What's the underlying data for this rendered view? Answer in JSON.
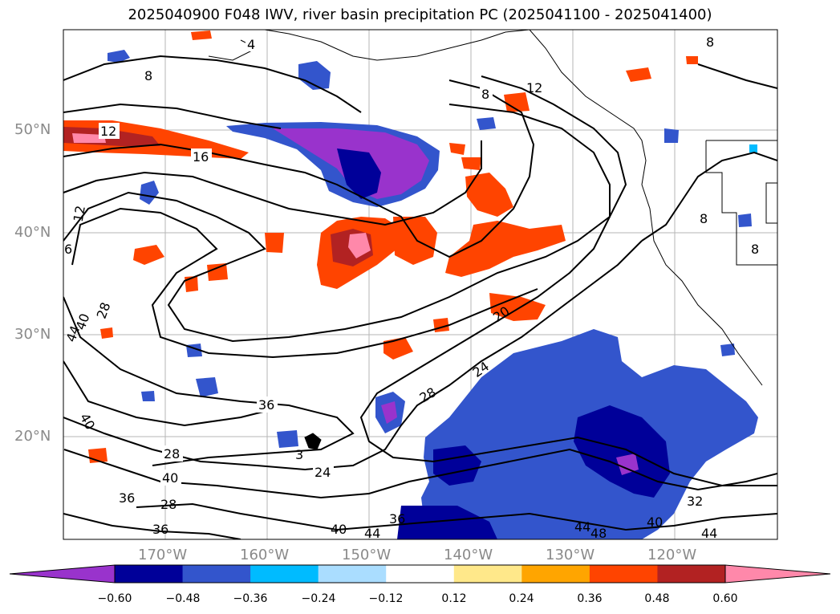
{
  "title": "2025040900 F048 IWV, river basin precipitation PC (2025041100 - 2025041400)",
  "axes": {
    "lat_labels": [
      "50°N",
      "40°N",
      "30°N",
      "20°N"
    ],
    "lon_labels": [
      "170°W",
      "160°W",
      "150°W",
      "140°W",
      "130°W",
      "120°W"
    ]
  },
  "colorbar": {
    "colors": [
      "#9933cc",
      "#000099",
      "#3355cc",
      "#00bbff",
      "#aaddff",
      "#ffffff",
      "#ffe88a",
      "#ffa500",
      "#ff4400",
      "#b22222",
      "#ff88aa"
    ],
    "under_color": "#9933cc",
    "over_color": "#ff88aa",
    "ticks": [
      "−0.60",
      "−0.48",
      "−0.36",
      "−0.24",
      "−0.12",
      "0.12",
      "0.24",
      "0.36",
      "0.48",
      "0.60"
    ]
  },
  "contour_labels": [
    "4",
    "8",
    "8",
    "12",
    "12",
    "16",
    "12",
    "6",
    "8",
    "8",
    "8",
    "28",
    "40",
    "44",
    "20",
    "24",
    "28",
    "36",
    "40",
    "28",
    "40",
    "24",
    "36",
    "28",
    "36",
    "36",
    "40",
    "44",
    "44",
    "48",
    "32",
    "40",
    "44",
    "3"
  ]
}
